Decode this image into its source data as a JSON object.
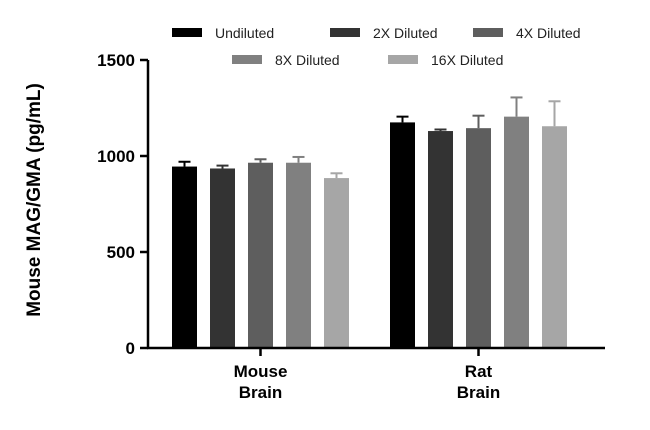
{
  "chart_data": {
    "type": "bar",
    "title": "",
    "xlabel": "",
    "ylabel": "Mouse MAG/GMA (pg/mL)",
    "ylim": [
      0,
      1500
    ],
    "yticks": [
      0,
      500,
      1000,
      1500
    ],
    "categories": [
      {
        "lines": [
          "Mouse",
          "Brain"
        ]
      },
      {
        "lines": [
          "Rat",
          "Brain"
        ]
      }
    ],
    "series": [
      {
        "name": "Undiluted",
        "color": "#000000",
        "values": [
          945,
          1175
        ],
        "errors": [
          25,
          30
        ]
      },
      {
        "name": "2X Diluted",
        "color": "#333333",
        "values": [
          935,
          1130
        ],
        "errors": [
          15,
          8
        ]
      },
      {
        "name": "4X Diluted",
        "color": "#5e5e5e",
        "values": [
          965,
          1145
        ],
        "errors": [
          18,
          65
        ]
      },
      {
        "name": "8X Diluted",
        "color": "#808080",
        "values": [
          965,
          1205
        ],
        "errors": [
          30,
          100
        ]
      },
      {
        "name": "16X Diluted",
        "color": "#a6a6a6",
        "values": [
          885,
          1155
        ],
        "errors": [
          25,
          130
        ]
      }
    ],
    "legend_position": "top",
    "grid": false
  }
}
